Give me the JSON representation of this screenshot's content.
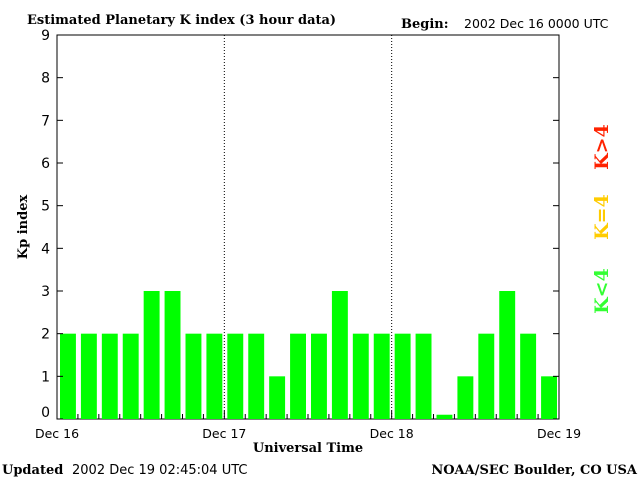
{
  "header": {
    "title": "Estimated Planetary K index (3 hour data)",
    "begin_label": "Begin:",
    "begin_value": "2002 Dec 16 0000 UTC"
  },
  "footer": {
    "updated_label": "Updated",
    "updated_value": "2002 Dec 19 02:45:04 UTC",
    "credit": "NOAA/SEC Boulder, CO USA"
  },
  "legend": {
    "items": [
      {
        "label": "K<4",
        "color": "#33ff33"
      },
      {
        "label": "K=4",
        "color": "#ffcc00"
      },
      {
        "label": "K>4",
        "color": "#ff2200"
      }
    ]
  },
  "chart_data": {
    "type": "bar",
    "xlabel": "Universal Time",
    "ylabel": "Kp index",
    "ylim": [
      0,
      9
    ],
    "yticks": [
      "0",
      "1",
      "2",
      "3",
      "4",
      "5",
      "6",
      "7",
      "8",
      "9"
    ],
    "x_tick_labels": [
      "Dec 16",
      "Dec 17",
      "Dec 18",
      "Dec 19"
    ],
    "values": [
      2,
      2,
      2,
      2,
      3,
      3,
      2,
      2,
      2,
      2,
      1,
      2,
      2,
      3,
      2,
      2,
      2,
      2,
      0.1,
      1,
      2,
      3,
      2,
      1
    ],
    "bar_color": "#00ff00",
    "day_separators": "dotted",
    "grid": false
  }
}
